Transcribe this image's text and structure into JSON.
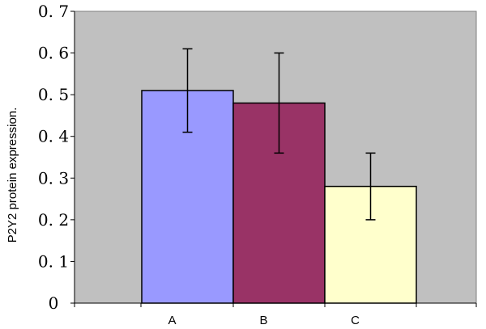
{
  "chart_data": {
    "type": "bar",
    "title": "",
    "xlabel": "",
    "ylabel": "P2Y2 protein expression.",
    "categories": [
      "A",
      "B",
      "C"
    ],
    "values": [
      0.51,
      0.48,
      0.28
    ],
    "errors": [
      0.1,
      0.12,
      0.08
    ],
    "bar_colors": [
      "#9999ff",
      "#993366",
      "#ffffcc"
    ],
    "plot_background": "#c0c0c0",
    "ylim": [
      0,
      0.7
    ],
    "yticks": [
      0,
      0.1,
      0.2,
      0.3,
      0.4,
      0.5,
      0.6,
      0.7
    ],
    "ytick_labels": [
      "0",
      "0. 1",
      "0. 2",
      "0. 3",
      "0. 4",
      "0. 5",
      "0. 6",
      "0. 7"
    ],
    "grid": false,
    "legend": "none"
  }
}
